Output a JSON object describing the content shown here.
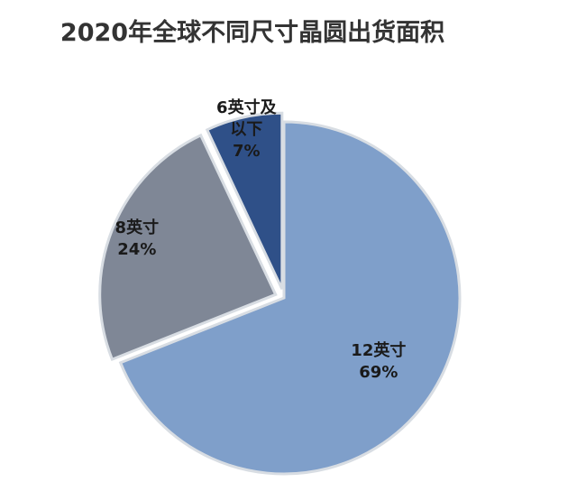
{
  "chart_data": {
    "type": "pie",
    "title": "2020年全球不同尺寸晶圆出货面积",
    "categories": [
      "12英寸",
      "8英寸",
      "6英寸及以下"
    ],
    "values": [
      69,
      24,
      7
    ],
    "value_labels": [
      "69%",
      "24%",
      "7%"
    ],
    "colors": [
      "#7f9fca",
      "#7f8796",
      "#2f5088"
    ]
  }
}
